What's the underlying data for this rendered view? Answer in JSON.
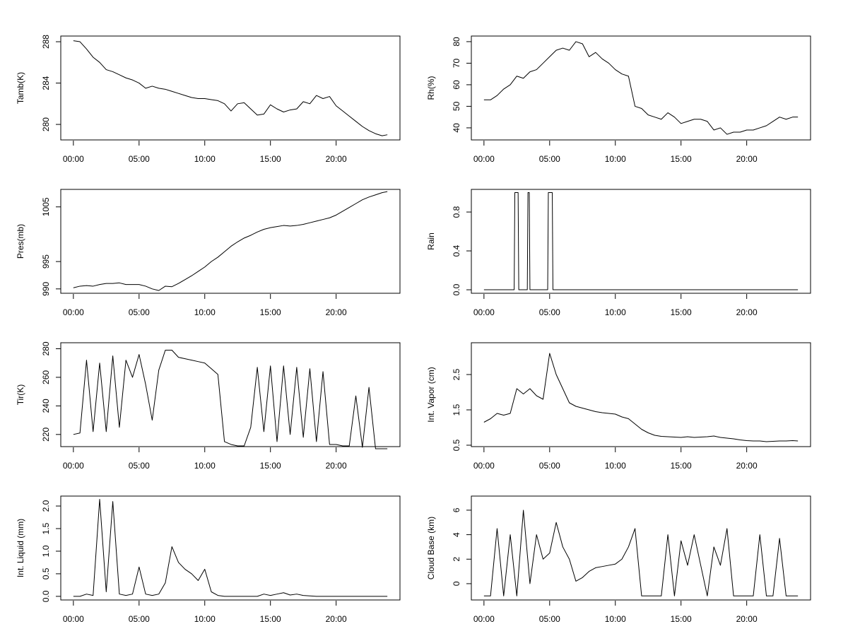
{
  "chart_data": [
    {
      "type": "line",
      "ylabel": "Tamb(K)",
      "x": [
        0,
        0.5,
        1,
        1.5,
        2,
        2.5,
        3,
        3.5,
        4,
        4.5,
        5,
        5.5,
        6,
        6.5,
        7,
        7.5,
        8,
        8.5,
        9,
        9.5,
        10,
        10.5,
        11,
        11.5,
        12,
        12.5,
        13,
        13.5,
        14,
        14.5,
        15,
        15.5,
        16,
        16.5,
        17,
        17.5,
        18,
        18.5,
        19,
        19.5,
        20,
        20.5,
        21,
        21.5,
        22,
        22.5,
        23,
        23.5,
        23.9
      ],
      "values": [
        288.1,
        288.0,
        287.3,
        286.5,
        286.0,
        285.3,
        285.1,
        284.8,
        284.5,
        284.3,
        284.0,
        283.5,
        283.7,
        283.5,
        283.4,
        283.2,
        283.0,
        282.8,
        282.6,
        282.5,
        282.5,
        282.4,
        282.3,
        282.0,
        281.3,
        282.0,
        282.1,
        281.5,
        280.9,
        281.0,
        281.9,
        281.5,
        281.2,
        281.4,
        281.5,
        282.2,
        282.0,
        282.8,
        282.5,
        282.7,
        281.8,
        281.3,
        280.8,
        280.3,
        279.8,
        279.4,
        279.1,
        278.9,
        279.0
      ],
      "color": "#000000",
      "xlim": [
        -0.96,
        24.86
      ],
      "ylim": [
        278.5,
        288.55
      ],
      "xticks": [
        {
          "value": 0,
          "label": "00:00"
        },
        {
          "value": 5,
          "label": "05:00"
        },
        {
          "value": 10,
          "label": "10:00"
        },
        {
          "value": 15,
          "label": "15:00"
        },
        {
          "value": 20,
          "label": "20:00"
        }
      ],
      "yticks": [
        280,
        284,
        288
      ]
    },
    {
      "type": "line",
      "ylabel": "Rh(%)",
      "x": [
        0,
        0.5,
        1,
        1.5,
        2,
        2.5,
        3,
        3.5,
        4,
        4.5,
        5,
        5.5,
        6,
        6.5,
        7,
        7.5,
        8,
        8.5,
        9,
        9.5,
        10,
        10.5,
        11,
        11.5,
        12,
        12.5,
        13,
        13.5,
        14,
        14.5,
        15,
        15.5,
        16,
        16.5,
        17,
        17.5,
        18,
        18.5,
        19,
        19.5,
        20,
        20.5,
        21,
        21.5,
        22,
        22.5,
        23,
        23.5,
        23.9
      ],
      "values": [
        53,
        53,
        55,
        58,
        60,
        64,
        63,
        66,
        67,
        70,
        73,
        76,
        77,
        76,
        80,
        79,
        73,
        75,
        72,
        70,
        67,
        65,
        64,
        50,
        49,
        46,
        45,
        44,
        47,
        45,
        42,
        43,
        44,
        44,
        43,
        39,
        40,
        37,
        38,
        38,
        39,
        39,
        40,
        41,
        43,
        45,
        44,
        45,
        45
      ],
      "color": "#000000",
      "xlim": [
        -0.96,
        24.86
      ],
      "ylim": [
        34.4,
        82.6
      ],
      "xticks": [
        {
          "value": 0,
          "label": "00:00"
        },
        {
          "value": 5,
          "label": "05:00"
        },
        {
          "value": 10,
          "label": "10:00"
        },
        {
          "value": 15,
          "label": "15:00"
        },
        {
          "value": 20,
          "label": "20:00"
        }
      ],
      "yticks": [
        40,
        50,
        60,
        70,
        80
      ]
    },
    {
      "type": "line",
      "ylabel": "Pres(mb)",
      "x": [
        0,
        0.5,
        1,
        1.5,
        2,
        2.5,
        3,
        3.5,
        4,
        4.5,
        5,
        5.5,
        6,
        6.5,
        7,
        7.5,
        8,
        8.5,
        9,
        9.5,
        10,
        10.5,
        11,
        11.5,
        12,
        12.5,
        13,
        13.5,
        14,
        14.5,
        15,
        15.5,
        16,
        16.5,
        17,
        17.5,
        18,
        18.5,
        19,
        19.5,
        20,
        20.5,
        21,
        21.5,
        22,
        22.5,
        23,
        23.5,
        23.9
      ],
      "values": [
        990.2,
        990.5,
        990.6,
        990.5,
        990.8,
        991,
        991,
        991.1,
        990.8,
        990.8,
        990.8,
        990.5,
        990,
        989.7,
        990.5,
        990.4,
        991,
        991.7,
        992.4,
        993.2,
        994,
        995,
        995.8,
        996.8,
        997.8,
        998.6,
        999.3,
        999.8,
        1000.4,
        1000.9,
        1001.2,
        1001.4,
        1001.6,
        1001.5,
        1001.6,
        1001.8,
        1002.1,
        1002.4,
        1002.7,
        1003,
        1003.5,
        1004.2,
        1004.9,
        1005.6,
        1006.3,
        1006.8,
        1007.2,
        1007.6,
        1007.8
      ],
      "color": "#000000",
      "xlim": [
        -0.96,
        24.86
      ],
      "ylim": [
        989.2,
        1008.2
      ],
      "xticks": [
        {
          "value": 0,
          "label": "00:00"
        },
        {
          "value": 5,
          "label": "05:00"
        },
        {
          "value": 10,
          "label": "10:00"
        },
        {
          "value": 15,
          "label": "15:00"
        },
        {
          "value": 20,
          "label": "20:00"
        }
      ],
      "yticks": [
        990,
        995,
        1005
      ]
    },
    {
      "type": "line",
      "ylabel": "Rain",
      "x": [
        0,
        2.3,
        2.35,
        2.6,
        2.65,
        3.3,
        3.35,
        3.45,
        3.5,
        4.85,
        4.9,
        5.2,
        5.25,
        23.9
      ],
      "values": [
        0,
        0,
        1,
        1,
        0,
        0,
        1,
        1,
        0,
        0,
        1,
        1,
        0,
        0
      ],
      "color": "#000000",
      "xlim": [
        -0.96,
        24.86
      ],
      "ylim": [
        -0.036,
        1.033
      ],
      "xticks": [
        {
          "value": 0,
          "label": "00:00"
        },
        {
          "value": 5,
          "label": "05:00"
        },
        {
          "value": 10,
          "label": "10:00"
        },
        {
          "value": 15,
          "label": "15:00"
        },
        {
          "value": 20,
          "label": "20:00"
        }
      ],
      "yticks": [
        {
          "value": 0,
          "label": "0.0"
        },
        0.4,
        0.8
      ]
    },
    {
      "type": "line",
      "ylabel": "Tir(K)",
      "x": [
        0,
        0.5,
        1,
        1.5,
        2,
        2.5,
        3,
        3.5,
        4,
        4.5,
        5,
        5.5,
        6,
        6.5,
        7,
        7.5,
        8,
        8.5,
        9,
        9.5,
        10,
        10.5,
        11,
        11.5,
        12,
        12.5,
        13,
        13.5,
        14,
        14.5,
        15,
        15.5,
        16,
        16.5,
        17,
        17.5,
        18,
        18.5,
        19,
        19.5,
        20,
        20.5,
        21,
        21.5,
        22,
        22.5,
        23,
        23.5,
        23.9
      ],
      "values": [
        220,
        221,
        272,
        222,
        270,
        222,
        275,
        225,
        272,
        260,
        276,
        255,
        230,
        265,
        279,
        279,
        274,
        273,
        272,
        271,
        270,
        266,
        262,
        215,
        213,
        212,
        212,
        225,
        267,
        222,
        268,
        215,
        268,
        220,
        267,
        218,
        266,
        215,
        264,
        213,
        213,
        212,
        212,
        247,
        211,
        253,
        210,
        210,
        210
      ],
      "color": "#000000",
      "xlim": [
        -0.96,
        24.86
      ],
      "ylim": [
        211.5,
        284.2
      ],
      "xticks": [
        {
          "value": 0,
          "label": "00:00"
        },
        {
          "value": 5,
          "label": "05:00"
        },
        {
          "value": 10,
          "label": "10:00"
        },
        {
          "value": 15,
          "label": "15:00"
        },
        {
          "value": 20,
          "label": "20:00"
        }
      ],
      "yticks": [
        220,
        240,
        260,
        280
      ]
    },
    {
      "type": "line",
      "ylabel": "Int. Vapor (cm)",
      "x": [
        0,
        0.5,
        1,
        1.5,
        2,
        2.5,
        3,
        3.5,
        4,
        4.5,
        5,
        5.5,
        6,
        6.5,
        7,
        7.5,
        8,
        8.5,
        9,
        9.5,
        10,
        10.5,
        11,
        11.5,
        12,
        12.5,
        13,
        13.5,
        14,
        14.5,
        15,
        15.5,
        16,
        16.5,
        17,
        17.5,
        18,
        18.5,
        19,
        19.5,
        20,
        20.5,
        21,
        21.5,
        22,
        22.5,
        23,
        23.5,
        23.9
      ],
      "values": [
        1.15,
        1.25,
        1.4,
        1.35,
        1.4,
        2.1,
        1.95,
        2.1,
        1.9,
        1.8,
        3.1,
        2.5,
        2.1,
        1.7,
        1.6,
        1.55,
        1.5,
        1.45,
        1.42,
        1.4,
        1.38,
        1.3,
        1.25,
        1.1,
        0.95,
        0.85,
        0.78,
        0.75,
        0.74,
        0.73,
        0.72,
        0.74,
        0.72,
        0.73,
        0.74,
        0.76,
        0.72,
        0.7,
        0.68,
        0.65,
        0.63,
        0.62,
        0.62,
        0.6,
        0.61,
        0.62,
        0.62,
        0.63,
        0.62
      ],
      "color": "#000000",
      "xlim": [
        -0.96,
        24.86
      ],
      "ylim": [
        0.46,
        3.4
      ],
      "xticks": [
        {
          "value": 0,
          "label": "00:00"
        },
        {
          "value": 5,
          "label": "05:00"
        },
        {
          "value": 10,
          "label": "10:00"
        },
        {
          "value": 15,
          "label": "15:00"
        },
        {
          "value": 20,
          "label": "20:00"
        }
      ],
      "yticks": [
        0.5,
        1.5,
        2.5
      ]
    },
    {
      "type": "line",
      "ylabel": "Int. Liquid (mm)",
      "x": [
        0,
        0.5,
        1,
        1.5,
        2,
        2.5,
        3,
        3.5,
        4,
        4.5,
        5,
        5.5,
        6,
        6.5,
        7,
        7.5,
        8,
        8.5,
        9,
        9.5,
        10,
        10.5,
        11,
        11.5,
        12,
        12.5,
        13,
        13.5,
        14,
        14.5,
        15,
        15.5,
        16,
        16.5,
        17,
        17.5,
        18,
        18.5,
        19,
        19.5,
        20,
        20.5,
        21,
        21.5,
        22,
        22.5,
        23,
        23.5,
        23.9
      ],
      "values": [
        0,
        0,
        0.05,
        0.02,
        2.15,
        0.1,
        2.1,
        0.05,
        0.02,
        0.05,
        0.65,
        0.05,
        0.02,
        0.05,
        0.3,
        1.1,
        0.75,
        0.6,
        0.5,
        0.35,
        0.6,
        0.1,
        0.02,
        0,
        0,
        0,
        0,
        0,
        0,
        0.05,
        0.02,
        0.05,
        0.08,
        0.03,
        0.05,
        0.02,
        0.01,
        0,
        0,
        0,
        0,
        0,
        0,
        0,
        0,
        0,
        0,
        0,
        0
      ],
      "color": "#000000",
      "xlim": [
        -0.96,
        24.86
      ],
      "ylim": [
        -0.08,
        2.22
      ],
      "xticks": [
        {
          "value": 0,
          "label": "00:00"
        },
        {
          "value": 5,
          "label": "05:00"
        },
        {
          "value": 10,
          "label": "10:00"
        },
        {
          "value": 15,
          "label": "15:00"
        },
        {
          "value": 20,
          "label": "20:00"
        }
      ],
      "yticks": [
        {
          "value": 0,
          "label": "0.0"
        },
        0.5,
        {
          "value": 1,
          "label": "1.0"
        },
        1.5,
        {
          "value": 2,
          "label": "2.0"
        }
      ]
    },
    {
      "type": "line",
      "ylabel": "Cloud Base (km)",
      "x": [
        0,
        0.5,
        1,
        1.5,
        2,
        2.5,
        3,
        3.5,
        4,
        4.5,
        5,
        5.5,
        6,
        6.5,
        7,
        7.5,
        8,
        8.5,
        9,
        9.5,
        10,
        10.5,
        11,
        11.5,
        12,
        12.5,
        13,
        13.5,
        14,
        14.5,
        15,
        15.5,
        16,
        16.5,
        17,
        17.5,
        18,
        18.5,
        19,
        19.5,
        20,
        20.5,
        21,
        21.5,
        22,
        22.5,
        23,
        23.5,
        23.9
      ],
      "values": [
        -1,
        -1,
        4.5,
        -1,
        4,
        -1,
        6,
        0,
        4,
        2,
        2.5,
        5,
        3,
        2,
        0.2,
        0.5,
        1,
        1.3,
        1.4,
        1.5,
        1.6,
        2,
        3,
        4.5,
        -1,
        -1,
        -1,
        -1,
        4,
        -1,
        3.5,
        1.5,
        4,
        1.5,
        -1,
        3,
        1.5,
        4.5,
        -1,
        -1,
        -1,
        -1,
        4,
        -1,
        -1,
        3.7,
        -1,
        -1,
        -1
      ],
      "color": "#000000",
      "xlim": [
        -0.96,
        24.86
      ],
      "ylim": [
        -1.33,
        7.15
      ],
      "xticks": [
        {
          "value": 0,
          "label": "00:00"
        },
        {
          "value": 5,
          "label": "05:00"
        },
        {
          "value": 10,
          "label": "10:00"
        },
        {
          "value": 15,
          "label": "15:00"
        },
        {
          "value": 20,
          "label": "20:00"
        }
      ],
      "yticks": [
        0,
        2,
        4,
        6
      ]
    }
  ]
}
